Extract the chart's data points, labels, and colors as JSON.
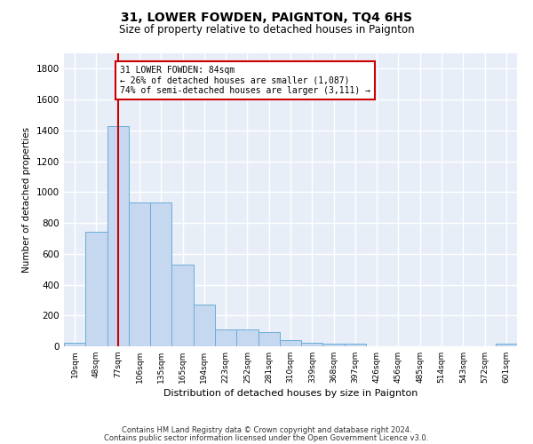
{
  "title": "31, LOWER FOWDEN, PAIGNTON, TQ4 6HS",
  "subtitle": "Size of property relative to detached houses in Paignton",
  "xlabel": "Distribution of detached houses by size in Paignton",
  "ylabel": "Number of detached properties",
  "bar_labels": [
    "19sqm",
    "48sqm",
    "77sqm",
    "106sqm",
    "135sqm",
    "165sqm",
    "194sqm",
    "223sqm",
    "252sqm",
    "281sqm",
    "310sqm",
    "339sqm",
    "368sqm",
    "397sqm",
    "426sqm",
    "456sqm",
    "485sqm",
    "514sqm",
    "543sqm",
    "572sqm",
    "601sqm"
  ],
  "bar_values": [
    25,
    740,
    1430,
    935,
    935,
    530,
    270,
    110,
    110,
    95,
    40,
    25,
    15,
    15,
    0,
    0,
    0,
    0,
    0,
    0,
    18
  ],
  "bar_color": "#c5d8f0",
  "bar_edge_color": "#6aaed6",
  "vline_x": 2,
  "vline_color": "#cc0000",
  "annotation_text": "31 LOWER FOWDEN: 84sqm\n← 26% of detached houses are smaller (1,087)\n74% of semi-detached houses are larger (3,111) →",
  "annotation_box_color": "#ffffff",
  "annotation_box_edge_color": "#cc0000",
  "ylim": [
    0,
    1900
  ],
  "yticks": [
    0,
    200,
    400,
    600,
    800,
    1000,
    1200,
    1400,
    1600,
    1800
  ],
  "background_color": "#e8eef8",
  "grid_color": "#ffffff",
  "fig_background": "#ffffff",
  "footer_line1": "Contains HM Land Registry data © Crown copyright and database right 2024.",
  "footer_line2": "Contains public sector information licensed under the Open Government Licence v3.0."
}
